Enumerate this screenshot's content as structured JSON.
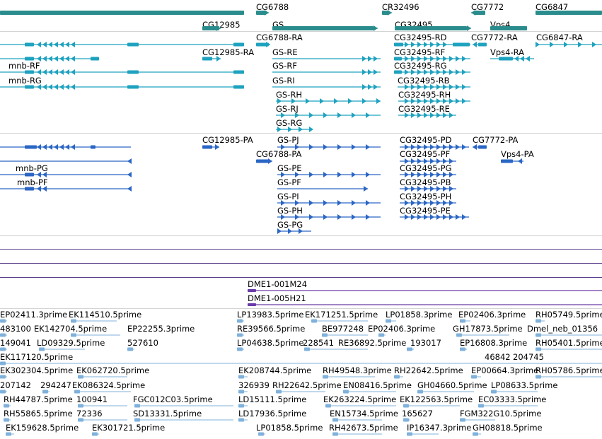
{
  "colors": {
    "gene": "#2a8c8c",
    "transcript_ra": "#1ea2bf",
    "transcript_pa": "#2a66c4",
    "clone": "#6a3aa8",
    "est": "#7fb1db"
  },
  "genes": [
    "CG6788",
    "CR32496",
    "CG7772",
    "CG6847",
    "CG12985",
    "GS",
    "CG32495",
    "Vps4"
  ],
  "transcripts_ra": [
    "CG6788-RA",
    "CG32495-RD",
    "CG7772-RA",
    "CG6847-RA",
    "CG12985-RA",
    "GS-RE",
    "CG32495-RF",
    "Vps4-RA",
    "mnb-RF",
    "GS-RF",
    "CG32495-RG",
    "mnb-RG",
    "GS-RI",
    "CG32495-RB",
    "GS-RH",
    "CG32495-RH",
    "GS-RJ",
    "CG32495-RE",
    "GS-RG"
  ],
  "transcripts_pa": [
    "CG12985-PA",
    "GS-PJ",
    "CG32495-PD",
    "CG7772-PA",
    "CG6788-PA",
    "CG32495-PF",
    "Vps4-PA",
    "mnb-PG",
    "GS-PE",
    "CG32495-PG",
    "mnb-PF",
    "GS-PF",
    "CG32495-PB",
    "GS-PI",
    "CG32495-PH",
    "GS-PH",
    "CG32495-PE",
    "GS-PG"
  ],
  "clones": [
    "DME1-001M24",
    "DME1-005H21"
  ],
  "ests": [
    "EP02411.3prime",
    "EK114510.5prime",
    "LP13983.5prime",
    "EK171251.5prime",
    "LP01858.3prime",
    "EP02406.3prime",
    "RH05749.5prime",
    "483100",
    "EK142704.5prime",
    "EP22255.3prime",
    "RE39566.5prime",
    "BE977248",
    "EP02406.3prime",
    "GH17873.5prime",
    "Dmel_neb_01356",
    "149041",
    "LD09329.5prime",
    "527610",
    "LP04638.5prime",
    "228541",
    "RE36892.5prime",
    "193017",
    "EP16808.3prime",
    "RH05401.5prime",
    "EK117120.5prime",
    "46842",
    "204745",
    "EK302304.5prime",
    "EK062720.5prime",
    "EK208744.5prime",
    "RH49548.3prime",
    "RH22642.5prime",
    "EP00664.3prime",
    "RH05786.5prime",
    "207142",
    "294247",
    "EK086324.5prime",
    "326939",
    "RH22642.5prime",
    "EN08416.5prime",
    "GH04660.5prime",
    "LP08633.5prime",
    "RH44787.5prime",
    "100941",
    "FGC012C03.5prime",
    "LD15111.5prime",
    "EK263224.5prime",
    "EK122563.5prime",
    "EC03333.5prime",
    "RH55865.5prime",
    "72336",
    "SD13331.5prime",
    "LD17936.5prime",
    "EN15734.5prime",
    "165627",
    "FGM322G10.5prime",
    "EK159628.5prime",
    "EK301721.5prime",
    "LP01858.5prime",
    "RH42673.5prime",
    "IP16347.3prime",
    "GH08818.5prime"
  ]
}
